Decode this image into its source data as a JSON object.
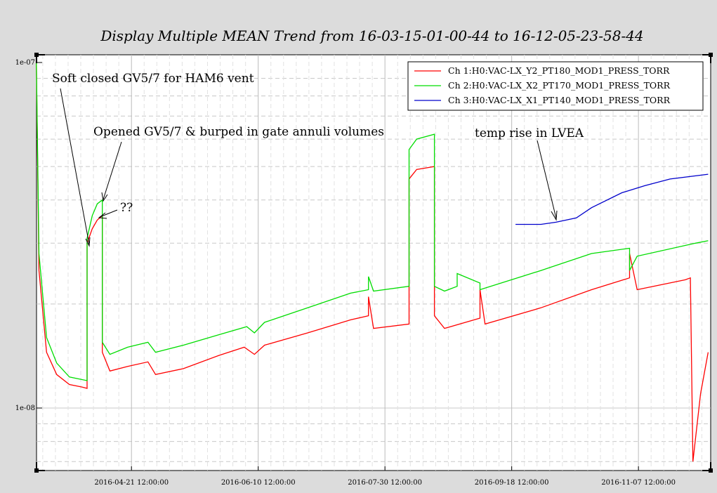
{
  "chart_data": {
    "type": "line",
    "title": "Display Multiple MEAN Trend from 16-03-15-01-00-44 to 16-12-05-23-58-44",
    "xlabel": "",
    "ylabel": "",
    "y_scale": "log",
    "y_ticks": [
      "1e-07",
      "1e-08"
    ],
    "ylim": [
      6.8e-09,
      1e-07
    ],
    "x_ticks": [
      "2016-04-21 12:00:00",
      "2016-06-10 12:00:00",
      "2016-07-30 12:00:00",
      "2016-09-18 12:00:00",
      "2016-11-07 12:00:00"
    ],
    "xlim": [
      "2016-03-15 01:00:44",
      "2016-12-05 23:58:44"
    ],
    "grid": true,
    "legend_position": "top-right",
    "series": [
      {
        "name": "Ch 1:H0:VAC-LX_Y2_PT180_MOD1_PRESS_TORR",
        "color": "#ff0000",
        "points": [
          [
            "2016-03-15",
            1e-07
          ],
          [
            "2016-03-16",
            2.5e-08
          ],
          [
            "2016-03-19",
            1.45e-08
          ],
          [
            "2016-03-23",
            1.25e-08
          ],
          [
            "2016-03-28",
            1.17e-08
          ],
          [
            "2016-04-02",
            1.15e-08
          ],
          [
            "2016-04-04",
            1.14e-08
          ],
          [
            "2016-04-04",
            3e-08
          ],
          [
            "2016-04-06",
            3.3e-08
          ],
          [
            "2016-04-08",
            3.5e-08
          ],
          [
            "2016-04-10",
            3.6e-08
          ],
          [
            "2016-04-10",
            1.45e-08
          ],
          [
            "2016-04-13",
            1.28e-08
          ],
          [
            "2016-04-20",
            1.32e-08
          ],
          [
            "2016-04-28",
            1.36e-08
          ],
          [
            "2016-05-01",
            1.25e-08
          ],
          [
            "2016-05-12",
            1.3e-08
          ],
          [
            "2016-05-26",
            1.42e-08
          ],
          [
            "2016-06-05",
            1.5e-08
          ],
          [
            "2016-06-09",
            1.43e-08
          ],
          [
            "2016-06-13",
            1.52e-08
          ],
          [
            "2016-06-30",
            1.65e-08
          ],
          [
            "2016-07-17",
            1.8e-08
          ],
          [
            "2016-07-24",
            1.85e-08
          ],
          [
            "2016-07-24",
            2.1e-08
          ],
          [
            "2016-07-26",
            1.7e-08
          ],
          [
            "2016-08-09",
            1.75e-08
          ],
          [
            "2016-08-09",
            4.6e-08
          ],
          [
            "2016-08-12",
            4.9e-08
          ],
          [
            "2016-08-19",
            5e-08
          ],
          [
            "2016-08-19",
            1.85e-08
          ],
          [
            "2016-08-23",
            1.7e-08
          ],
          [
            "2016-09-06",
            1.82e-08
          ],
          [
            "2016-09-06",
            2.2e-08
          ],
          [
            "2016-09-08",
            1.75e-08
          ],
          [
            "2016-09-30",
            1.95e-08
          ],
          [
            "2016-10-20",
            2.2e-08
          ],
          [
            "2016-11-04",
            2.38e-08
          ],
          [
            "2016-11-04",
            2.8e-08
          ],
          [
            "2016-11-07",
            2.2e-08
          ],
          [
            "2016-11-26",
            2.35e-08
          ],
          [
            "2016-11-28",
            2.38e-08
          ],
          [
            "2016-11-29",
            7e-09
          ],
          [
            "2016-12-02",
            1.1e-08
          ],
          [
            "2016-12-05",
            1.45e-08
          ]
        ]
      },
      {
        "name": "Ch 2:H0:VAC-LX_X2_PT170_MOD1_PRESS_TORR",
        "color": "#00dd00",
        "points": [
          [
            "2016-03-15",
            1e-07
          ],
          [
            "2016-03-16",
            2.8e-08
          ],
          [
            "2016-03-19",
            1.6e-08
          ],
          [
            "2016-03-23",
            1.35e-08
          ],
          [
            "2016-03-28",
            1.23e-08
          ],
          [
            "2016-04-04",
            1.2e-08
          ],
          [
            "2016-04-04",
            3.1e-08
          ],
          [
            "2016-04-06",
            3.6e-08
          ],
          [
            "2016-04-08",
            3.9e-08
          ],
          [
            "2016-04-10",
            4e-08
          ],
          [
            "2016-04-10",
            1.55e-08
          ],
          [
            "2016-04-13",
            1.43e-08
          ],
          [
            "2016-04-20",
            1.5e-08
          ],
          [
            "2016-04-28",
            1.55e-08
          ],
          [
            "2016-05-01",
            1.45e-08
          ],
          [
            "2016-05-12",
            1.52e-08
          ],
          [
            "2016-05-26",
            1.63e-08
          ],
          [
            "2016-06-06",
            1.72e-08
          ],
          [
            "2016-06-09",
            1.65e-08
          ],
          [
            "2016-06-13",
            1.77e-08
          ],
          [
            "2016-06-30",
            1.95e-08
          ],
          [
            "2016-07-17",
            2.15e-08
          ],
          [
            "2016-07-24",
            2.2e-08
          ],
          [
            "2016-07-24",
            2.4e-08
          ],
          [
            "2016-07-26",
            2.18e-08
          ],
          [
            "2016-08-09",
            2.25e-08
          ],
          [
            "2016-08-09",
            5.6e-08
          ],
          [
            "2016-08-12",
            6e-08
          ],
          [
            "2016-08-19",
            6.2e-08
          ],
          [
            "2016-08-19",
            2.25e-08
          ],
          [
            "2016-08-23",
            2.18e-08
          ],
          [
            "2016-08-28",
            2.25e-08
          ],
          [
            "2016-08-28",
            2.45e-08
          ],
          [
            "2016-09-06",
            2.3e-08
          ],
          [
            "2016-09-06",
            2.2e-08
          ],
          [
            "2016-09-30",
            2.5e-08
          ],
          [
            "2016-10-20",
            2.8e-08
          ],
          [
            "2016-11-04",
            2.9e-08
          ],
          [
            "2016-11-04",
            2.5e-08
          ],
          [
            "2016-11-07",
            2.75e-08
          ],
          [
            "2016-11-30",
            3e-08
          ],
          [
            "2016-12-05",
            3.05e-08
          ]
        ]
      },
      {
        "name": "Ch 3:H0:VAC-LX_X1_PT140_MOD1_PRESS_TORR",
        "color": "#0000cc",
        "points": [
          [
            "2016-09-20",
            3.4e-08
          ],
          [
            "2016-09-30",
            3.4e-08
          ],
          [
            "2016-10-06",
            3.45e-08
          ],
          [
            "2016-10-14",
            3.55e-08
          ],
          [
            "2016-10-20",
            3.8e-08
          ],
          [
            "2016-11-01",
            4.2e-08
          ],
          [
            "2016-11-10",
            4.4e-08
          ],
          [
            "2016-11-20",
            4.6e-08
          ],
          [
            "2016-12-05",
            4.75e-08
          ]
        ]
      }
    ],
    "annotations": [
      {
        "text": "Soft closed GV5/7 for HAM6 vent"
      },
      {
        "text": "Opened GV5/7 & burped in gate annuli volumes"
      },
      {
        "text": "??"
      },
      {
        "text": "temp rise in LVEA"
      }
    ]
  }
}
